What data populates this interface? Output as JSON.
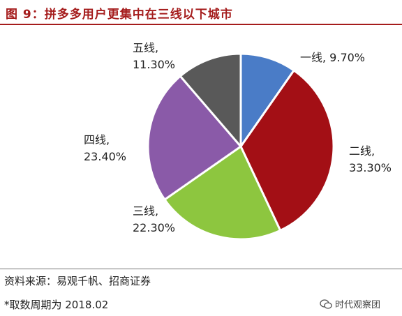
{
  "title": "图 9：拼多多用户更集中在三线以下城市",
  "chart_data": {
    "type": "pie",
    "slices": [
      {
        "name": "一线",
        "value": 9.7,
        "label": "一线, 9.70%",
        "color": "#4a7cc7"
      },
      {
        "name": "二线",
        "value": 33.3,
        "label": "二线,\n33.30%",
        "color": "#a30f15"
      },
      {
        "name": "三线",
        "value": 22.3,
        "label": "三线,\n22.30%",
        "color": "#8dc63f"
      },
      {
        "name": "四线",
        "value": 23.4,
        "label": "四线,\n23.40%",
        "color": "#8a5aa8"
      },
      {
        "name": "五线",
        "value": 11.3,
        "label": "五线,\n11.30%",
        "color": "#595959"
      }
    ]
  },
  "footer": {
    "source": "资料来源：易观千帆、招商证券",
    "note": "*取数周期为 2018.02"
  },
  "watermark": {
    "text": "时代观察团",
    "icon": "wechat-icon"
  }
}
